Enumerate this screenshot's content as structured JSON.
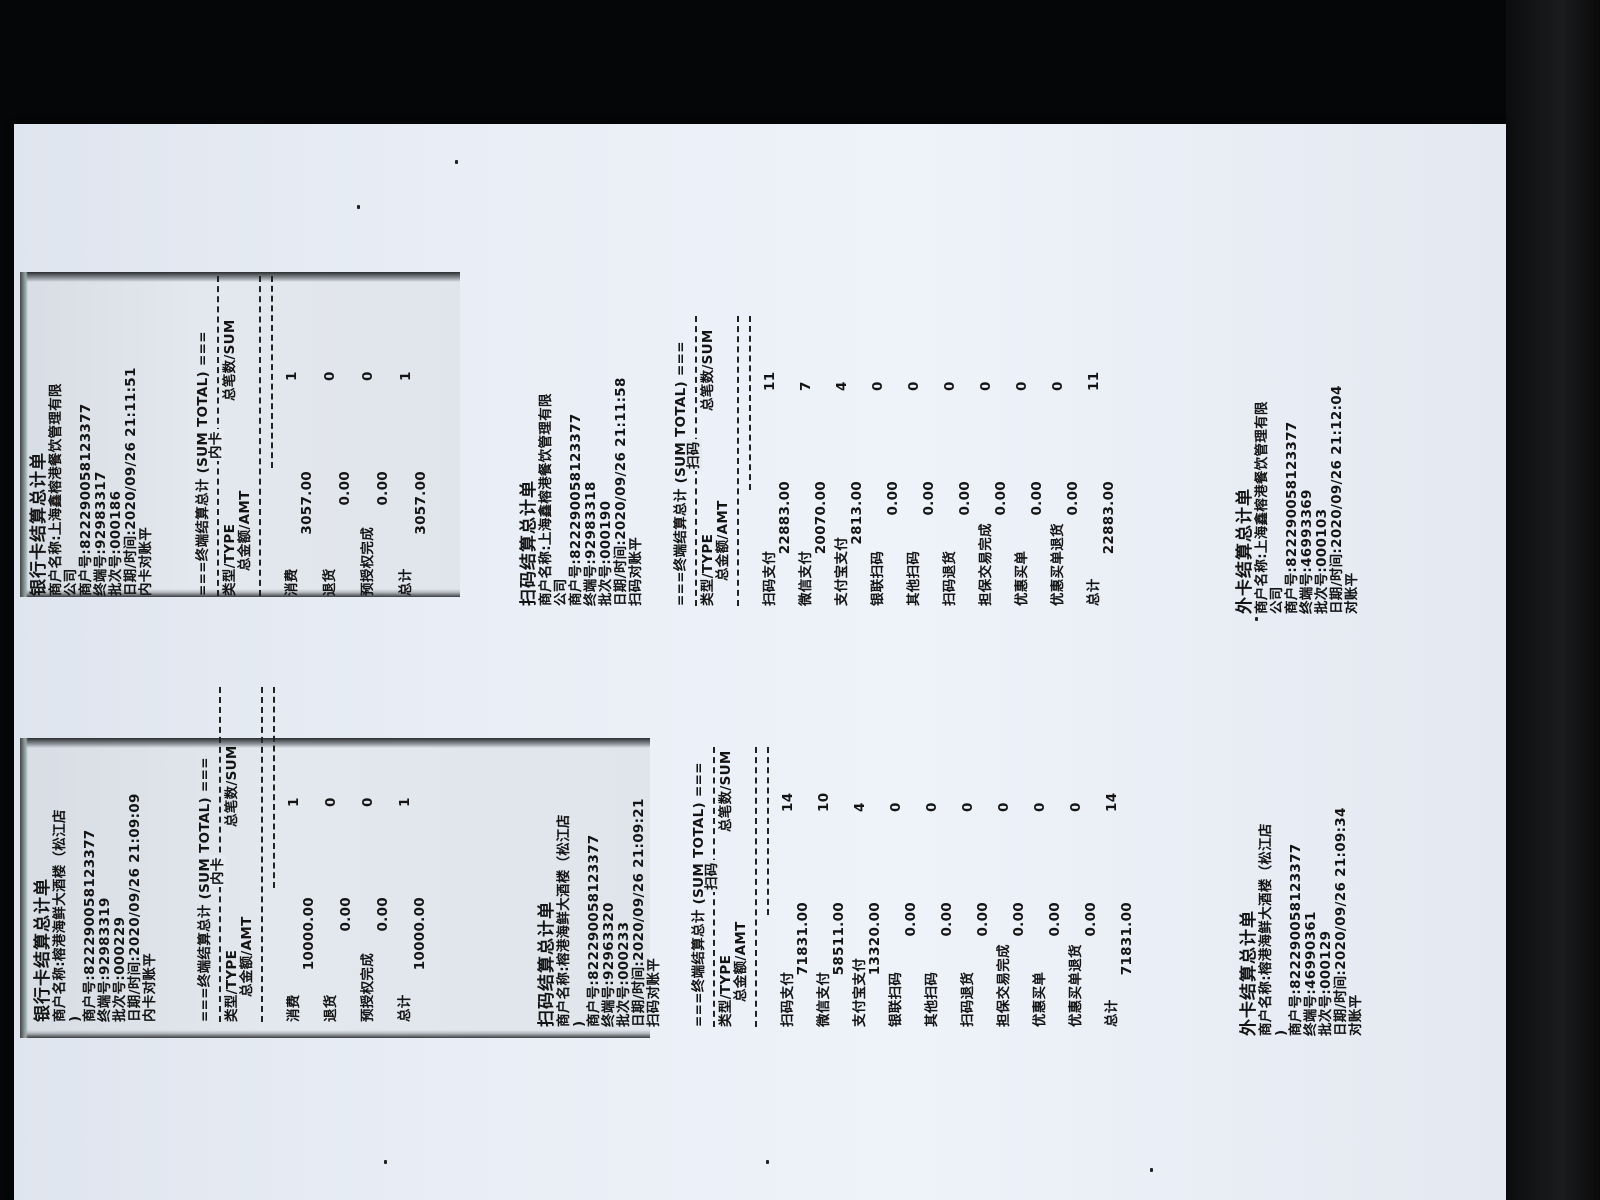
{
  "document": {
    "receipts": [
      {
        "id": "bank-card-1",
        "title": "银行卡结算总计单",
        "header": [
          "商户名称:上海鑫榕港餐饮管理有限",
          "公司",
          "商户号:822290058123377",
          "终端号:92983317",
          "批次号:000186",
          "日期/时间:2020/09/26 21:11:51",
          "内卡对账平"
        ],
        "section_title": "===终端结算总计 (SUM TOTAL) ===",
        "sub_label": "内卡",
        "col_type": "类型/TYPE",
        "col_sum": "总笔数/SUM",
        "col_amt": "总金额/AMT",
        "items": [
          {
            "name": "消费",
            "count": "1",
            "amount": "3057.00"
          },
          {
            "name": "退货",
            "count": "0",
            "amount": "0.00"
          },
          {
            "name": "预授权完成",
            "count": "0",
            "amount": "0.00"
          },
          {
            "name": "总计",
            "count": "1",
            "amount": "3057.00"
          }
        ]
      },
      {
        "id": "bank-card-2",
        "title": "银行卡结算总计单",
        "header": [
          "商户名称:榕港海鲜大酒楼（松江店",
          ")",
          "商户号:822290058123377",
          "终端号:92983319",
          "批次号:000229",
          "日期/时间:2020/09/26 21:09:09",
          "内卡对账平"
        ],
        "section_title": "===终端结算总计 (SUM TOTAL) ===",
        "sub_label": "内卡",
        "col_type": "类型/TYPE",
        "col_sum": "总笔数/SUM",
        "col_amt": "总金额/AMT",
        "items": [
          {
            "name": "消费",
            "count": "1",
            "amount": "10000.00"
          },
          {
            "name": "退货",
            "count": "0",
            "amount": "0.00"
          },
          {
            "name": "预授权完成",
            "count": "0",
            "amount": "0.00"
          },
          {
            "name": "总计",
            "count": "1",
            "amount": "10000.00"
          }
        ]
      },
      {
        "id": "scan-code-1",
        "title": "扫码结算总计单",
        "header": [
          "商户名称:上海鑫榕港餐饮管理有限",
          "公司",
          "商户号:822290058123377",
          "终端号:92983318",
          "批次号:000190",
          "日期/时间:2020/09/26 21:11:58",
          "扫码对账平"
        ],
        "section_title": "===终端结算总计 (SUM TOTAL) ===",
        "sub_label": "扫码",
        "col_type": "类型/TYPE",
        "col_sum": "总笔数/SUM",
        "col_amt": "总金额/AMT",
        "items": [
          {
            "name": "扫码支付",
            "count": "11",
            "amount": "22883.00"
          },
          {
            "name": "微信支付",
            "count": "7",
            "amount": "20070.00"
          },
          {
            "name": "支付宝支付",
            "count": "4",
            "amount": "2813.00"
          },
          {
            "name": "银联扫码",
            "count": "0",
            "amount": "0.00"
          },
          {
            "name": "其他扫码",
            "count": "0",
            "amount": "0.00"
          },
          {
            "name": "扫码退货",
            "count": "0",
            "amount": "0.00"
          },
          {
            "name": "担保交易完成",
            "count": "0",
            "amount": "0.00"
          },
          {
            "name": "优惠买单",
            "count": "0",
            "amount": "0.00"
          },
          {
            "name": "优惠买单退货",
            "count": "0",
            "amount": "0.00"
          },
          {
            "name": "总计",
            "count": "11",
            "amount": "22883.00"
          }
        ]
      },
      {
        "id": "scan-code-2",
        "title": "扫码结算总计单",
        "header": [
          "商户名称:榕港海鲜大酒楼（松江店",
          ")",
          "商户号:822290058123377",
          "终端号:92963320",
          "批次号:000233",
          "日期/时间:2020/09/26 21:09:21",
          "扫码对账平"
        ],
        "section_title": "===终端结算总计 (SUM TOTAL) ===",
        "sub_label": "扫码",
        "col_type": "类型/TYPE",
        "col_sum": "总笔数/SUM",
        "col_amt": "总金额/AMT",
        "items": [
          {
            "name": "扫码支付",
            "count": "14",
            "amount": "71831.00"
          },
          {
            "name": "微信支付",
            "count": "10",
            "amount": "58511.00"
          },
          {
            "name": "支付宝支付",
            "count": "4",
            "amount": "13320.00"
          },
          {
            "name": "银联扫码",
            "count": "0",
            "amount": "0.00"
          },
          {
            "name": "其他扫码",
            "count": "0",
            "amount": "0.00"
          },
          {
            "name": "扫码退货",
            "count": "0",
            "amount": "0.00"
          },
          {
            "name": "担保交易完成",
            "count": "0",
            "amount": "0.00"
          },
          {
            "name": "优惠买单",
            "count": "0",
            "amount": "0.00"
          },
          {
            "name": "优惠买单退货",
            "count": "0",
            "amount": "0.00"
          },
          {
            "name": "总计",
            "count": "14",
            "amount": "71831.00"
          }
        ]
      },
      {
        "id": "foreign-card-1",
        "title": "外卡结算总计单",
        "header": [
          "商户名称:上海鑫榕港餐饮管理有限",
          "公司",
          "商户号:822290058123377",
          "终端号:46993369",
          "批次号:000103",
          "日期/时间:2020/09/26 21:12:04",
          "对账平"
        ]
      },
      {
        "id": "foreign-card-2",
        "title": "外卡结算总计单",
        "header": [
          "商户名称:榕港海鲜大酒楼（松江店",
          ")",
          "商户号:822290058123377",
          "终端号:46990361",
          "批次号:000129",
          "日期/时间:2020/09/26 21:09:34",
          "对账平"
        ]
      }
    ]
  },
  "colors": {
    "background": "#050607",
    "paper": "#e9eef6",
    "ink": "#141414"
  }
}
